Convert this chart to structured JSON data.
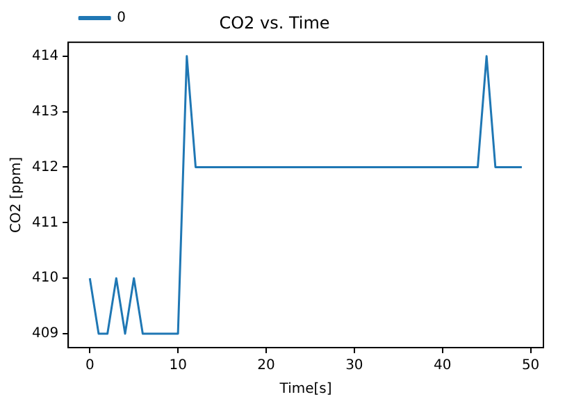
{
  "chart_data": {
    "type": "line",
    "title": "CO2 vs. Time",
    "xlabel": "Time[s]",
    "ylabel": "CO2 [ppm]",
    "x": [
      0,
      1,
      2,
      3,
      4,
      5,
      6,
      10,
      11,
      12,
      44,
      45,
      46,
      49
    ],
    "series": [
      {
        "name": "0",
        "color": "#1f77b4",
        "values": [
          410,
          409,
          409,
          410,
          409,
          410,
          409,
          409,
          414,
          412,
          412,
          414,
          412,
          412
        ]
      }
    ],
    "xlim": [
      -2.45,
      51.45
    ],
    "xticks": [
      0,
      10,
      20,
      30,
      40,
      50
    ],
    "ylim": [
      408.75,
      414.25
    ],
    "yticks": [
      409,
      410,
      411,
      412,
      413,
      414
    ],
    "grid": false,
    "legend": "top left",
    "marker": "none",
    "line_style": "solid"
  }
}
